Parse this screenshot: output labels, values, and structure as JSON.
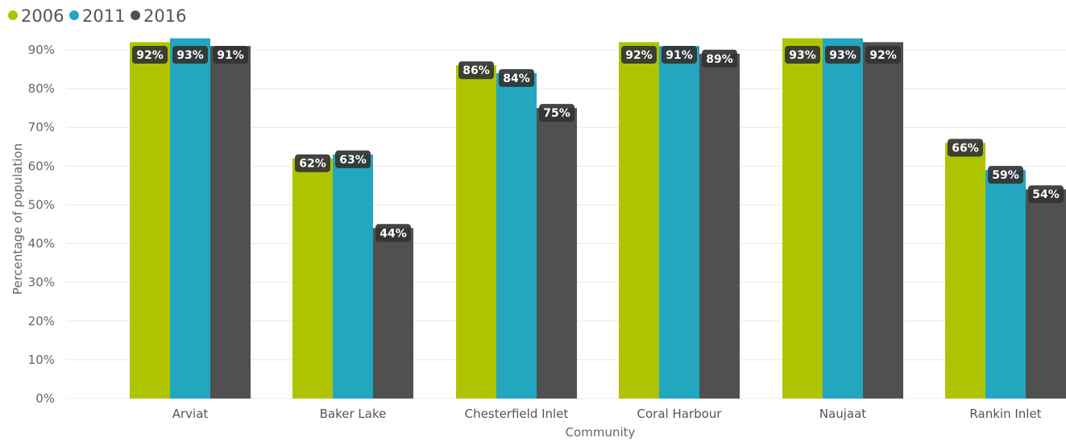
{
  "chart_data": {
    "type": "bar",
    "title": "",
    "xlabel": "Community",
    "ylabel": "Percentage of population",
    "ylim": [
      0,
      90
    ],
    "yticks": [
      0,
      10,
      20,
      30,
      40,
      50,
      60,
      70,
      80,
      90
    ],
    "ytick_suffix": "%",
    "grid": true,
    "legend_position": "top-left",
    "categories": [
      "Arviat",
      "Baker Lake",
      "Chesterfield Inlet",
      "Coral Harbour",
      "Naujaat",
      "Rankin Inlet"
    ],
    "series": [
      {
        "name": "2006",
        "color": "#AEC400",
        "values": [
          92,
          62,
          86,
          92,
          93,
          66
        ]
      },
      {
        "name": "2011",
        "color": "#23A6C0",
        "values": [
          93,
          63,
          84,
          91,
          93,
          59
        ]
      },
      {
        "name": "2016",
        "color": "#505050",
        "values": [
          91,
          44,
          75,
          89,
          92,
          54
        ]
      }
    ]
  }
}
